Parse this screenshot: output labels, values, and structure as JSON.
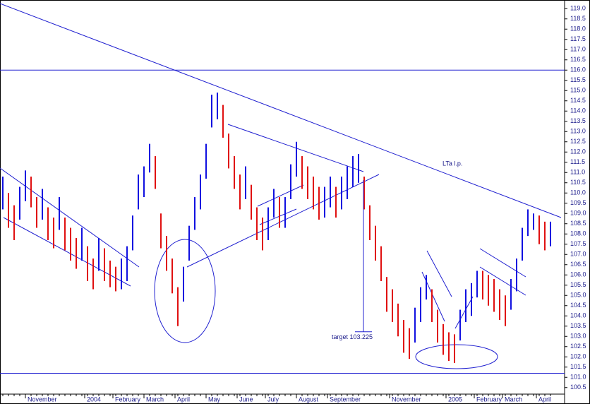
{
  "chart_data": {
    "type": "hilo",
    "high": [
      110.8,
      110.0,
      109.4,
      110.3,
      111.1,
      110.8,
      109.8,
      110.2,
      109.3,
      108.8,
      109.8,
      108.8,
      108.3,
      107.8,
      108.3,
      107.4,
      106.8,
      107.8,
      107.3,
      106.7,
      106.4,
      106.8,
      107.4,
      108.9,
      110.9,
      111.3,
      112.4,
      111.8,
      109.0,
      107.9,
      106.8,
      105.4,
      106.4,
      108.4,
      109.8,
      110.9,
      112.4,
      114.8,
      114.9,
      114.3,
      112.9,
      111.8,
      110.9,
      111.3,
      110.4,
      109.3,
      108.8,
      109.3,
      110.2,
      109.8,
      109.8,
      111.4,
      112.5,
      111.8,
      111.3,
      110.8,
      110.3,
      110.3,
      110.8,
      110.3,
      110.8,
      111.3,
      111.8,
      111.9,
      110.8,
      109.4,
      108.4,
      107.4,
      105.9,
      105.3,
      104.6,
      103.8,
      103.4,
      104.4,
      105.4,
      106.0,
      105.3,
      104.3,
      103.6,
      103.2,
      103.1,
      104.3,
      105.3,
      105.6,
      106.2,
      106.2,
      106.0,
      105.8,
      105.3,
      105.0,
      105.8,
      106.8,
      108.3,
      109.2,
      109.0,
      108.9,
      108.6,
      108.6
    ],
    "low": [
      109.2,
      108.3,
      107.7,
      108.7,
      109.6,
      109.3,
      108.3,
      108.7,
      107.7,
      107.3,
      108.2,
      107.2,
      106.7,
      106.3,
      106.7,
      105.7,
      105.3,
      106.2,
      105.7,
      105.4,
      105.2,
      105.3,
      105.7,
      107.2,
      109.2,
      109.8,
      111.0,
      110.2,
      107.3,
      106.2,
      105.1,
      103.5,
      104.7,
      106.7,
      108.2,
      109.2,
      110.7,
      113.2,
      113.6,
      112.7,
      111.2,
      110.2,
      109.2,
      109.7,
      108.7,
      107.7,
      107.2,
      107.7,
      108.8,
      108.3,
      108.3,
      109.7,
      110.8,
      110.2,
      109.7,
      109.2,
      108.7,
      108.8,
      109.3,
      108.8,
      109.2,
      109.7,
      110.3,
      110.5,
      109.2,
      107.7,
      106.7,
      105.7,
      104.2,
      103.7,
      103.0,
      102.2,
      101.9,
      102.7,
      103.7,
      104.8,
      103.7,
      102.7,
      102.1,
      101.8,
      101.7,
      102.8,
      103.7,
      104.0,
      104.9,
      104.8,
      104.5,
      104.2,
      103.8,
      103.5,
      104.3,
      105.2,
      106.7,
      107.9,
      108.2,
      107.5,
      107.2,
      107.4
    ],
    "xlim": [
      0,
      100
    ],
    "xticks": [
      {
        "value": 4.5,
        "label": "November"
      },
      {
        "value": 15,
        "label": "2004"
      },
      {
        "value": 20,
        "label": "February"
      },
      {
        "value": 25.5,
        "label": "March"
      },
      {
        "value": 31,
        "label": "April"
      },
      {
        "value": 36.5,
        "label": "May"
      },
      {
        "value": 42,
        "label": "June"
      },
      {
        "value": 47,
        "label": "July"
      },
      {
        "value": 52.5,
        "label": "August"
      },
      {
        "value": 58,
        "label": "September"
      },
      {
        "value": 69,
        "label": "November"
      },
      {
        "value": 79,
        "label": "2005"
      },
      {
        "value": 84,
        "label": "February"
      },
      {
        "value": 89,
        "label": "March"
      },
      {
        "value": 95,
        "label": "April"
      }
    ],
    "ylim": [
      100.25,
      119.25
    ],
    "yticks": [
      100.5,
      {
        "value": 101,
        "label": "101.0"
      },
      101.5,
      {
        "value": 102,
        "label": "102.0"
      },
      102.5,
      {
        "value": 103,
        "label": "103.0"
      },
      103.5,
      {
        "value": 104,
        "label": "104.0"
      },
      104.5,
      {
        "value": 105,
        "label": "105.0"
      },
      105.5,
      {
        "value": 106,
        "label": "106.0"
      },
      106.5,
      {
        "value": 107,
        "label": "107.0"
      },
      107.5,
      {
        "value": 108,
        "label": "108.0"
      },
      108.5,
      {
        "value": 109,
        "label": "109.0"
      },
      109.5,
      {
        "value": 110,
        "label": "110.0"
      },
      110.5,
      {
        "value": 111,
        "label": "111.0"
      },
      111.5,
      {
        "value": 112,
        "label": "112.0"
      },
      112.5,
      {
        "value": 113,
        "label": "113.0"
      },
      113.5,
      {
        "value": 114,
        "label": "114.0"
      },
      114.5,
      {
        "value": 115,
        "label": "115.0"
      },
      115.5,
      {
        "value": 116,
        "label": "116.0"
      },
      116.5,
      {
        "value": 117,
        "label": "117.0"
      },
      117.5,
      {
        "value": 118,
        "label": "118.0"
      },
      118.5,
      {
        "value": 119,
        "label": "119.0"
      }
    ],
    "hlines": [
      116,
      101.2
    ],
    "up_color": "#1010e0",
    "down_color": "#e01010",
    "line_color": "#2020d0",
    "annotation": "LTa l.p.",
    "target": {
      "value": 103.225,
      "label": "target 103.225"
    }
  }
}
